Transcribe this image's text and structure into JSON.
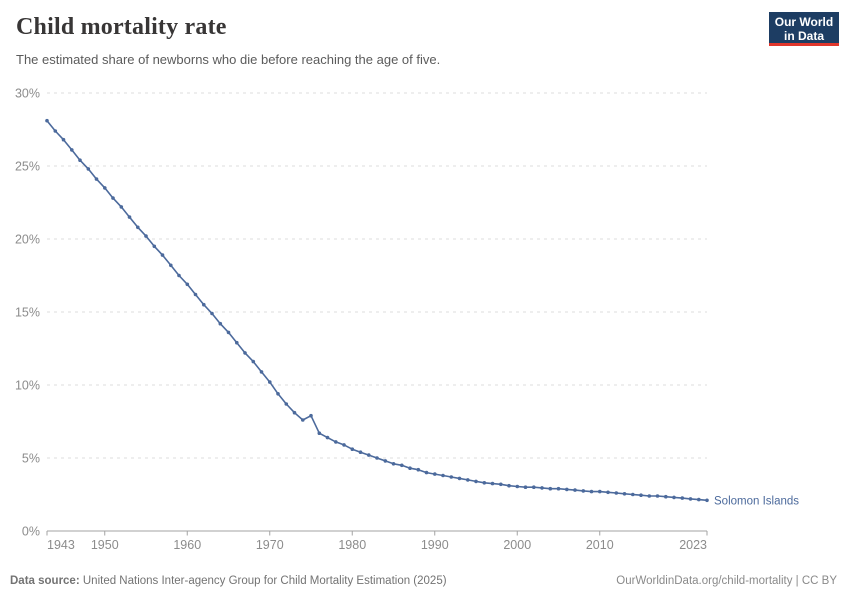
{
  "header": {
    "title": "Child mortality rate",
    "subtitle": "The estimated share of newborns who die before reaching the age of five.",
    "logo": {
      "line1": "Our World",
      "line2": "in Data",
      "bg_color": "#1d3d63",
      "accent_color": "#e0362c"
    }
  },
  "chart_data": {
    "type": "line",
    "title": "Child mortality rate",
    "xlabel": "",
    "ylabel": "",
    "ylim": [
      0,
      30
    ],
    "xlim": [
      1943,
      2023
    ],
    "grid": true,
    "grid_style": "dashed",
    "y_ticks": [
      0,
      5,
      10,
      15,
      20,
      25,
      30
    ],
    "y_tick_labels": [
      "0%",
      "5%",
      "10%",
      "15%",
      "20%",
      "25%",
      "30%"
    ],
    "x_ticks": [
      1943,
      1950,
      1960,
      1970,
      1980,
      1990,
      2000,
      2010,
      2023
    ],
    "x_tick_labels": [
      "1943",
      "1950",
      "1960",
      "1970",
      "1980",
      "1990",
      "2000",
      "2010",
      "2023"
    ],
    "x": [
      1943,
      1944,
      1945,
      1946,
      1947,
      1948,
      1949,
      1950,
      1951,
      1952,
      1953,
      1954,
      1955,
      1956,
      1957,
      1958,
      1959,
      1960,
      1961,
      1962,
      1963,
      1964,
      1965,
      1966,
      1967,
      1968,
      1969,
      1970,
      1971,
      1972,
      1973,
      1974,
      1975,
      1976,
      1977,
      1978,
      1979,
      1980,
      1981,
      1982,
      1983,
      1984,
      1985,
      1986,
      1987,
      1988,
      1989,
      1990,
      1991,
      1992,
      1993,
      1994,
      1995,
      1996,
      1997,
      1998,
      1999,
      2000,
      2001,
      2002,
      2003,
      2004,
      2005,
      2006,
      2007,
      2008,
      2009,
      2010,
      2011,
      2012,
      2013,
      2014,
      2015,
      2016,
      2017,
      2018,
      2019,
      2020,
      2021,
      2022,
      2023
    ],
    "series": [
      {
        "name": "Solomon Islands",
        "color": "#4c6a9c",
        "values": [
          28.1,
          27.4,
          26.8,
          26.1,
          25.4,
          24.8,
          24.1,
          23.5,
          22.8,
          22.2,
          21.5,
          20.8,
          20.2,
          19.5,
          18.9,
          18.2,
          17.5,
          16.9,
          16.2,
          15.5,
          14.9,
          14.2,
          13.6,
          12.9,
          12.2,
          11.6,
          10.9,
          10.2,
          9.4,
          8.7,
          8.1,
          7.6,
          7.9,
          6.7,
          6.4,
          6.1,
          5.9,
          5.6,
          5.4,
          5.2,
          5.0,
          4.8,
          4.6,
          4.5,
          4.3,
          4.2,
          4.0,
          3.9,
          3.8,
          3.7,
          3.6,
          3.5,
          3.4,
          3.3,
          3.25,
          3.2,
          3.1,
          3.05,
          3.0,
          3.0,
          2.95,
          2.9,
          2.9,
          2.85,
          2.8,
          2.75,
          2.7,
          2.7,
          2.65,
          2.6,
          2.55,
          2.5,
          2.45,
          2.4,
          2.4,
          2.35,
          2.3,
          2.25,
          2.2,
          2.15,
          2.1
        ]
      }
    ],
    "end_label": "Solomon Islands",
    "legend_position": "end-of-line",
    "colors": {
      "line": "#4c6a9c",
      "gridline": "#dedede",
      "axis": "#a3a3a3",
      "tick_label": "#8c8c8c"
    }
  },
  "footer": {
    "source_label": "Data source:",
    "source_text": " United Nations Inter-agency Group for Child Mortality Estimation (2025)",
    "credit": "OurWorldinData.org/child-mortality | CC BY"
  }
}
